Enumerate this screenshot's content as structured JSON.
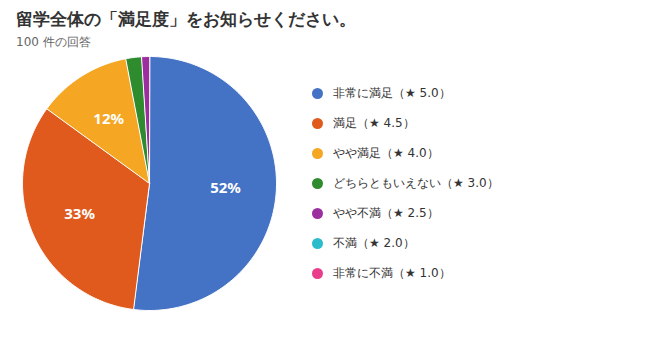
{
  "chart_data": {
    "type": "pie",
    "title": "留学全体の「満足度」をお知らせください。",
    "subtitle": "100 件の回答",
    "categories": [
      "非常に満足（★ 5.0）",
      "満足（★ 4.5）",
      "やや満足（★ 4.0）",
      "どちらともいえない（★ 3.0）",
      "やや不満（★ 2.5）",
      "不満（★ 2.0）",
      "非常に不満（★ 1.0）"
    ],
    "values": [
      52,
      33,
      12,
      2,
      1,
      0,
      0
    ],
    "colors": [
      "#4472C4",
      "#E05A1E",
      "#F5A623",
      "#2E8B2E",
      "#9B2FA0",
      "#2BBCCC",
      "#E83E8C"
    ],
    "data_labels": true,
    "value_labels": [
      "52%",
      "33%",
      "12%",
      null,
      null,
      null,
      null
    ],
    "legend": "right"
  }
}
